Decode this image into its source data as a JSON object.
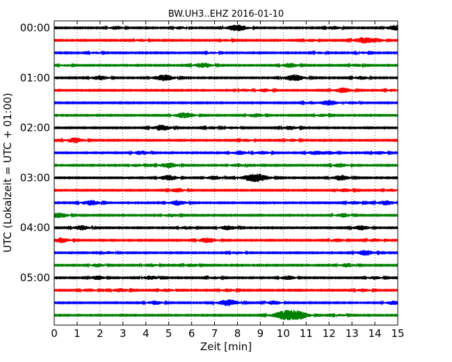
{
  "chart_data": {
    "type": "line",
    "title": "BW.UH3..EHZ 2016-01-10",
    "xlabel": "Zeit  [min]",
    "ylabel": "UTC (Lokalzeit = UTC + 01:00)",
    "xlim": [
      0,
      15
    ],
    "x_ticks": [
      "0",
      "1",
      "2",
      "3",
      "4",
      "5",
      "6",
      "7",
      "8",
      "9",
      "10",
      "11",
      "12",
      "13",
      "14",
      "15"
    ],
    "grid": "vertical-dotted",
    "y_tick_labels": [
      "00:00",
      "01:00",
      "02:00",
      "03:00",
      "04:00",
      "05:00"
    ],
    "trace_colors": [
      "#000000",
      "#ff0000",
      "#0000ff",
      "#008000"
    ],
    "traces": [
      {
        "start": "00:00",
        "events": [
          [
            2.7,
            0.5
          ],
          [
            5.5,
            0.4
          ],
          [
            8.0,
            1.0
          ],
          [
            12.2,
            0.5
          ],
          [
            14.9,
            0.8
          ]
        ]
      },
      {
        "start": "00:15",
        "events": [
          [
            3.8,
            0.4
          ],
          [
            7.5,
            0.3
          ],
          [
            11.2,
            0.4
          ],
          [
            13.5,
            0.9
          ],
          [
            14.1,
            0.5
          ]
        ]
      },
      {
        "start": "00:30",
        "events": [
          [
            1.8,
            0.3
          ],
          [
            6.9,
            0.3
          ],
          [
            11.6,
            0.3
          ],
          [
            13.5,
            0.3
          ]
        ]
      },
      {
        "start": "00:45",
        "events": [
          [
            0.5,
            0.3
          ],
          [
            6.5,
            0.8
          ],
          [
            10.3,
            0.7
          ],
          [
            13.2,
            0.4
          ]
        ]
      },
      {
        "start": "01:00",
        "events": [
          [
            2.0,
            0.7
          ],
          [
            4.8,
            1.0
          ],
          [
            10.5,
            1.0
          ],
          [
            13.4,
            0.5
          ]
        ]
      },
      {
        "start": "01:15",
        "events": [
          [
            8.3,
            0.4
          ],
          [
            9.2,
            0.5
          ],
          [
            12.6,
            0.8
          ],
          [
            14.8,
            0.4
          ]
        ]
      },
      {
        "start": "01:30",
        "events": [
          [
            11.2,
            0.4
          ],
          [
            12.0,
            0.8
          ],
          [
            13.0,
            0.4
          ]
        ]
      },
      {
        "start": "01:45",
        "events": [
          [
            5.7,
            0.9
          ],
          [
            8.8,
            0.6
          ],
          [
            11.7,
            0.4
          ]
        ]
      },
      {
        "start": "02:00",
        "events": [
          [
            4.7,
            0.9
          ],
          [
            6.9,
            0.4
          ],
          [
            7.8,
            0.4
          ],
          [
            10.3,
            0.6
          ]
        ]
      },
      {
        "start": "02:15",
        "events": [
          [
            0.9,
            0.8
          ],
          [
            8.4,
            0.4
          ],
          [
            10.4,
            0.4
          ]
        ]
      },
      {
        "start": "02:30",
        "events": [
          [
            3.8,
            0.6
          ],
          [
            8.1,
            0.6
          ],
          [
            9.1,
            0.5
          ],
          [
            11.4,
            0.6
          ],
          [
            12.0,
            0.5
          ],
          [
            14.2,
            0.5
          ]
        ]
      },
      {
        "start": "02:45",
        "events": [
          [
            3.6,
            0.4
          ],
          [
            5.0,
            0.8
          ],
          [
            8.0,
            0.5
          ],
          [
            12.5,
            0.6
          ]
        ]
      },
      {
        "start": "03:00",
        "events": [
          [
            5.0,
            0.8
          ],
          [
            7.0,
            0.6
          ],
          [
            8.8,
            1.4
          ],
          [
            12.5,
            0.8
          ]
        ]
      },
      {
        "start": "03:15",
        "events": [
          [
            5.4,
            0.6
          ],
          [
            12.7,
            0.5
          ],
          [
            14.7,
            0.4
          ]
        ]
      },
      {
        "start": "03:30",
        "events": [
          [
            1.6,
            0.8
          ],
          [
            5.4,
            0.8
          ],
          [
            13.1,
            0.5
          ],
          [
            14.5,
            0.7
          ]
        ]
      },
      {
        "start": "03:45",
        "events": [
          [
            0.2,
            0.8
          ],
          [
            5.1,
            0.5
          ],
          [
            12.6,
            0.6
          ]
        ]
      },
      {
        "start": "04:00",
        "events": [
          [
            1.2,
            0.7
          ],
          [
            5.8,
            0.5
          ],
          [
            7.6,
            0.7
          ],
          [
            13.4,
            0.7
          ]
        ]
      },
      {
        "start": "04:15",
        "events": [
          [
            0.3,
            0.8
          ],
          [
            6.7,
            0.8
          ],
          [
            12.4,
            0.5
          ],
          [
            14.0,
            0.5
          ]
        ]
      },
      {
        "start": "04:30",
        "events": [
          [
            2.4,
            0.4
          ],
          [
            8.0,
            0.4
          ],
          [
            13.6,
            0.8
          ]
        ]
      },
      {
        "start": "04:45",
        "events": [
          [
            1.9,
            0.5
          ],
          [
            4.2,
            0.5
          ],
          [
            6.0,
            0.5
          ],
          [
            12.8,
            0.6
          ]
        ]
      },
      {
        "start": "05:00",
        "events": [
          [
            1.9,
            0.6
          ],
          [
            4.2,
            0.6
          ],
          [
            7.0,
            0.4
          ],
          [
            10.2,
            0.6
          ],
          [
            14.0,
            0.5
          ]
        ]
      },
      {
        "start": "05:15",
        "events": [
          [
            1.5,
            0.5
          ],
          [
            2.9,
            0.6
          ],
          [
            4.9,
            0.5
          ],
          [
            7.6,
            0.5
          ],
          [
            13.5,
            0.5
          ]
        ]
      },
      {
        "start": "05:30",
        "events": [
          [
            4.4,
            0.6
          ],
          [
            7.6,
            1.0
          ],
          [
            9.6,
            0.6
          ],
          [
            14.8,
            0.6
          ]
        ]
      },
      {
        "start": "05:45",
        "events": [
          [
            10.2,
            1.6
          ],
          [
            10.8,
            0.7
          ],
          [
            12.5,
            0.3
          ]
        ]
      }
    ]
  }
}
